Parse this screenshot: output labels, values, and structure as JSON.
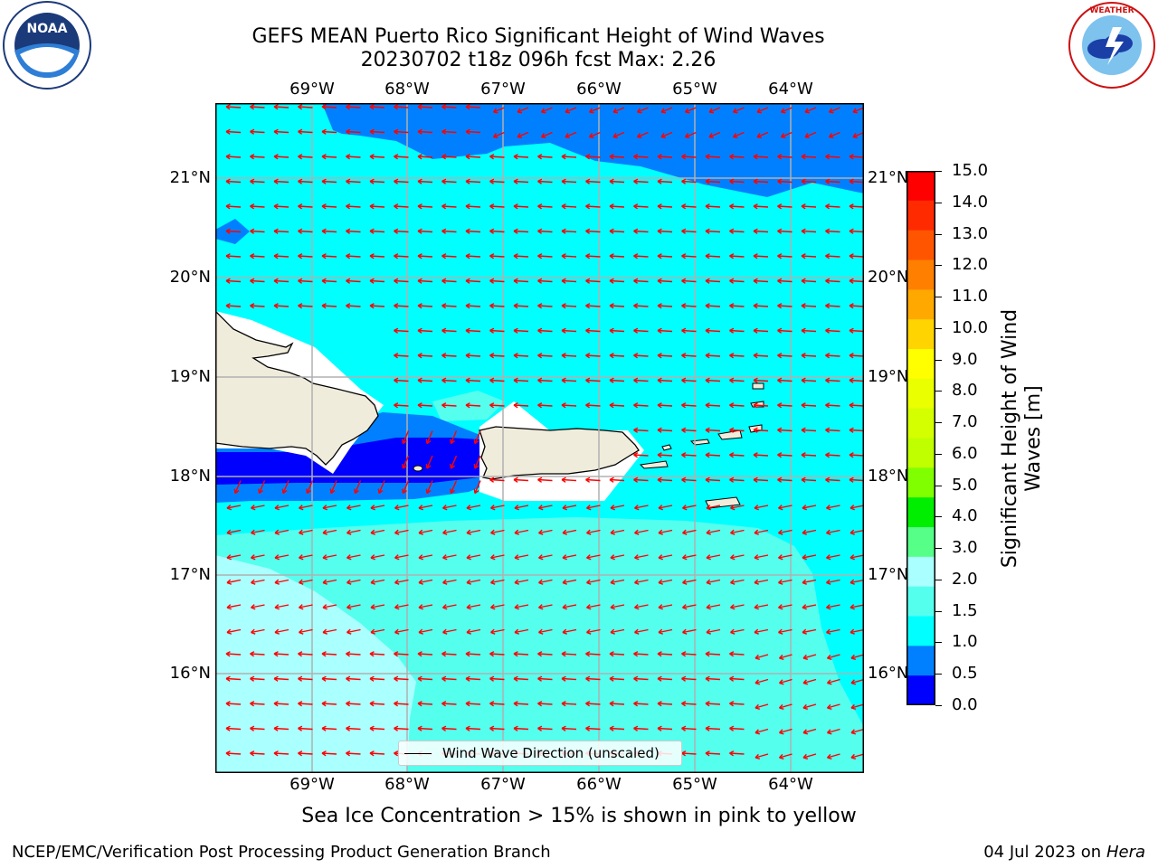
{
  "title": {
    "line1": "GEFS MEAN Puerto Rico Significant Height of Wind Waves",
    "line2": "20230702 t18z 096h fcst   Max: 2.26"
  },
  "axes": {
    "longitudes": [
      "69°W",
      "68°W",
      "67°W",
      "66°W",
      "65°W",
      "64°W"
    ],
    "latitudes": [
      "21°N",
      "20°N",
      "19°N",
      "18°N",
      "17°N",
      "16°N"
    ]
  },
  "legend": {
    "label": "Wind Wave Direction (unscaled)"
  },
  "colorbar": {
    "label": "Significant Height of Wind Waves [m]",
    "ticks": [
      "15.0",
      "14.0",
      "13.0",
      "12.0",
      "11.0",
      "10.0",
      "9.0",
      "8.0",
      "7.0",
      "6.0",
      "5.0",
      "4.0",
      "3.0",
      "2.0",
      "1.5",
      "1.0",
      "0.5",
      "0.0"
    ],
    "colors": [
      "#fe0000",
      "#ff2a00",
      "#ff5500",
      "#ff7f00",
      "#ffa900",
      "#ffd400",
      "#ffff00",
      "#eaff00",
      "#d4ff00",
      "#bfff00",
      "#7fff00",
      "#00ee00",
      "#55ff88",
      "#aaffff",
      "#55ffee",
      "#00ffff",
      "#0080ff",
      "#0000ff"
    ]
  },
  "subtitle": "Sea Ice Concentration > 15% is shown in pink to yellow",
  "footer": {
    "left": "NCEP/EMC/Verification Post Processing Product Generation Branch",
    "right_date": "04 Jul 2023 on ",
    "right_host": "Hera"
  },
  "logos": {
    "noaa_text": "NOAA",
    "noaa_ring": "NATIONAL OCEANIC AND ATMOSPHERIC ADMINISTRATION · U.S. DEPARTMENT OF COMMERCE",
    "nws_ring": "NATIONAL WEATHER SERVICE"
  },
  "map_colors": {
    "ocean_1_1_5": "#00ffff",
    "ocean_1_5_2": "#55ffee",
    "ocean_2_3": "#aaffff",
    "ocean_0_5_1": "#0080ff",
    "ocean_0_0_5": "#0000ff",
    "land": "#efecdc",
    "arrows": "#ff0000"
  }
}
